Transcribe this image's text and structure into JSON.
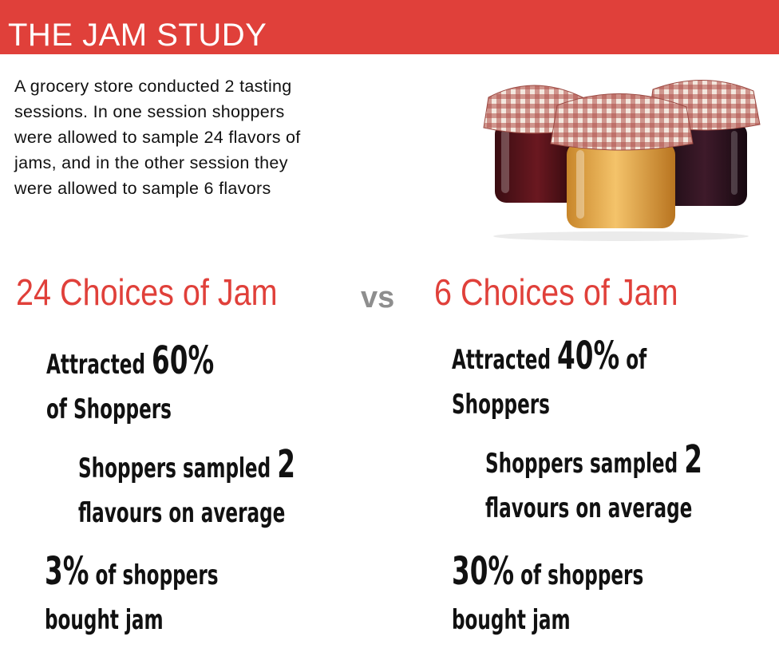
{
  "banner": {
    "title": "THE JAM STUDY"
  },
  "intro": {
    "lines": [
      "A grocery store conducted 2 tasting",
      "sessions. In one session shoppers",
      "were allowed to sample 24 flavors of",
      "jams, and in the other session they",
      "were allowed to sample 6 flavors"
    ]
  },
  "colors": {
    "accent": "#e0403a",
    "vs": "#8e8e8e",
    "text": "#111111"
  },
  "comparison": {
    "vs": "vs",
    "left": {
      "heading": "24 Choices of Jam",
      "attracted": {
        "pre": "Attracted ",
        "value": "60%",
        "post": "",
        "line2": "of Shoppers"
      },
      "sampled": {
        "pre": "Shoppers sampled ",
        "value": "2",
        "line2": "flavours on average"
      },
      "bought": {
        "value": "3%",
        "post": " of shoppers",
        "line2": "bought jam"
      }
    },
    "right": {
      "heading": "6 Choices of Jam",
      "attracted": {
        "pre": "Attracted ",
        "value": "40%",
        "post": " of",
        "line2": "Shoppers"
      },
      "sampled": {
        "pre": "Shoppers sampled ",
        "value": "2",
        "line2": "flavours on average"
      },
      "bought": {
        "value": "30%",
        "post": " of shoppers",
        "line2": "bought jam"
      }
    }
  }
}
